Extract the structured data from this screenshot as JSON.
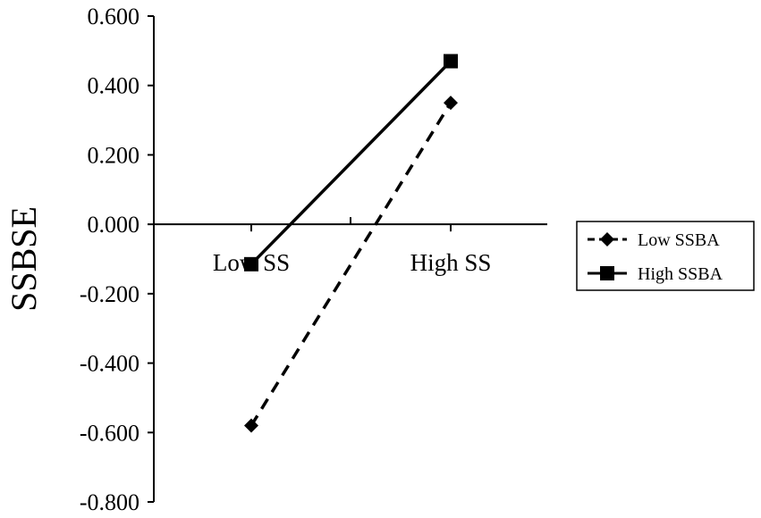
{
  "chart_data": {
    "type": "line",
    "title": "",
    "xlabel": "",
    "ylabel": "SSBSE",
    "categories": [
      "Low SS",
      "High SS"
    ],
    "ylim": [
      -0.8,
      0.6
    ],
    "yticks": [
      "0.600",
      "0.400",
      "0.200",
      "0.000",
      "-0.200",
      "-0.400",
      "-0.600",
      "-0.800"
    ],
    "ytick_values": [
      0.6,
      0.4,
      0.2,
      0.0,
      -0.2,
      -0.4,
      -0.6,
      -0.8
    ],
    "grid": false,
    "legend_position": "right",
    "series": [
      {
        "name": "Low SSBA",
        "values": [
          -0.58,
          0.35
        ],
        "line_style": "dashed",
        "marker": "diamond",
        "color": "#000000"
      },
      {
        "name": "High SSBA",
        "values": [
          -0.115,
          0.47
        ],
        "line_style": "solid",
        "marker": "square",
        "color": "#000000"
      }
    ]
  }
}
